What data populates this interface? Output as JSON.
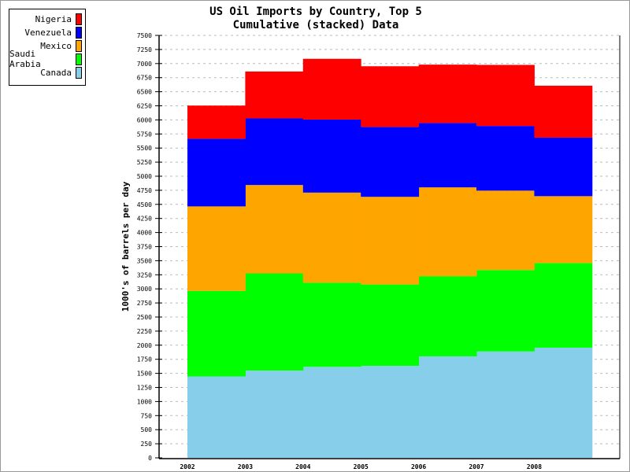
{
  "chart_data": {
    "type": "area",
    "stacked": true,
    "step": true,
    "title": "US Oil Imports by Country, Top 5",
    "subtitle": "Cumulative (stacked) Data",
    "xlabel": "",
    "ylabel": "1000's of barrels per day",
    "categories": [
      "2002",
      "2003",
      "2004",
      "2005",
      "2006",
      "2007",
      "2008"
    ],
    "ylim": [
      0,
      7500
    ],
    "ytick_step": 250,
    "grid": "horizontal dashed",
    "legend_placement": "top-left outside",
    "series": [
      {
        "name": "Canada",
        "color": "#87CEEB",
        "values": [
          1445,
          1549,
          1616,
          1633,
          1802,
          1888,
          1956
        ]
      },
      {
        "name": "Saudi Arabia",
        "color": "#00FF00",
        "values": [
          1519,
          1726,
          1495,
          1445,
          1423,
          1447,
          1503
        ]
      },
      {
        "name": "Mexico",
        "color": "#FFA500",
        "values": [
          1500,
          1569,
          1598,
          1556,
          1577,
          1409,
          1187
        ]
      },
      {
        "name": "Venezuela",
        "color": "#0000FF",
        "values": [
          1201,
          1183,
          1297,
          1241,
          1142,
          1148,
          1039
        ]
      },
      {
        "name": "Nigeria",
        "color": "#FF0000",
        "values": [
          589,
          832,
          1078,
          1077,
          1037,
          1084,
          922
        ]
      }
    ]
  }
}
